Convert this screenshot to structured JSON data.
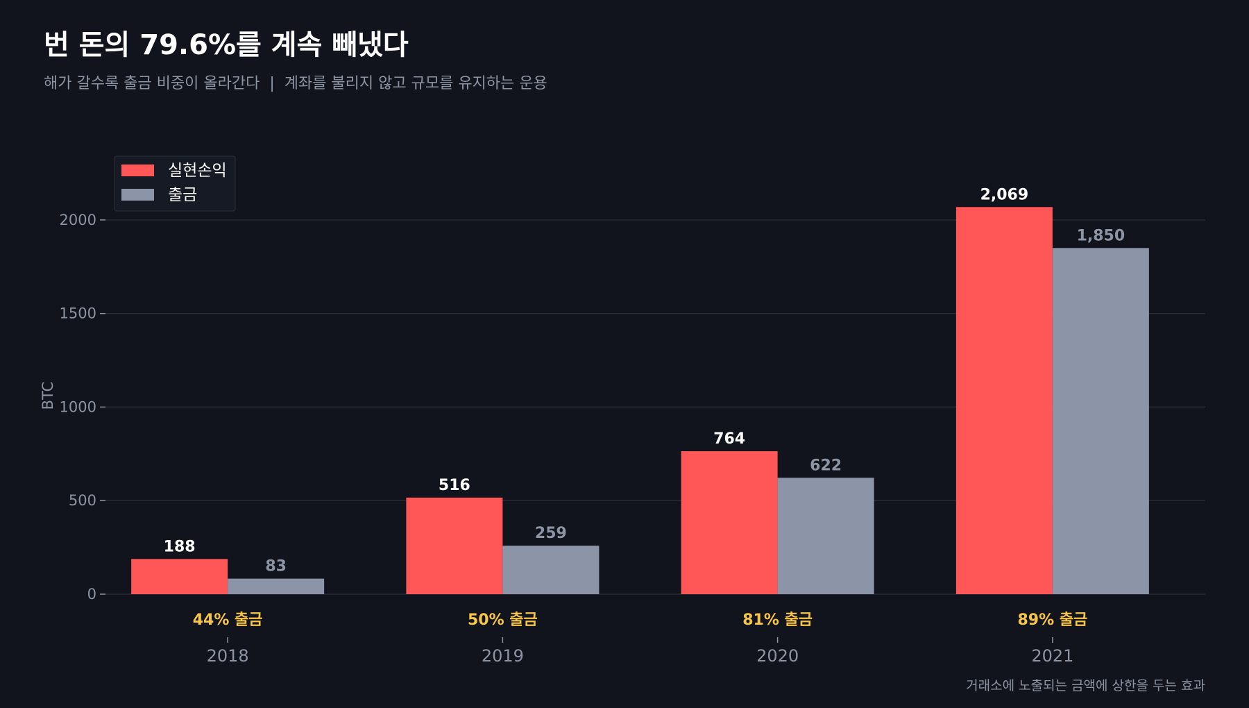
{
  "chart_data": {
    "type": "bar",
    "title": "번 돈의 79.6%를 계속 빼냈다",
    "subtitle": "해가 갈수록 출금 비중이 올라간다  |  계좌를 불리지 않고 규모를 유지하는 운용",
    "ylabel": "BTC",
    "xlabel": "",
    "categories": [
      "2018",
      "2019",
      "2020",
      "2021"
    ],
    "series": [
      {
        "name": "실현손익",
        "values": [
          188,
          516,
          764,
          2069
        ],
        "labels": [
          "188",
          "516",
          "764",
          "2,069"
        ],
        "color": "#ff5757"
      },
      {
        "name": "출금",
        "values": [
          83,
          259,
          622,
          1850
        ],
        "labels": [
          "83",
          "259",
          "622",
          "1,850"
        ],
        "color": "#8c95a8"
      }
    ],
    "ratio_labels": [
      "44% 출금",
      "50% 출금",
      "81% 출금",
      "89% 출금"
    ],
    "ratio_color": "#f7c548",
    "yticks": [
      0,
      500,
      1000,
      1500,
      2000
    ],
    "ylim": [
      0,
      2300
    ],
    "grid": true,
    "legend_position": "top-left",
    "footnote": "거래소에 노출되는 금액에 상한을 두는 효과",
    "colors": {
      "background": "#11141c",
      "grid": "#262a35",
      "muted_text": "#8d94a3"
    }
  }
}
